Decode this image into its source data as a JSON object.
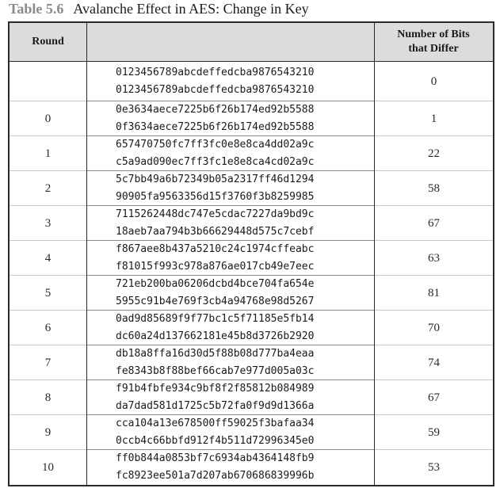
{
  "caption": {
    "number": "Table 5.6",
    "title": "Avalanche Effect in AES: Change in Key"
  },
  "header": {
    "round": "Round",
    "bits_line1": "Number of Bits",
    "bits_line2": "that Differ"
  },
  "rows": [
    {
      "round": "",
      "key1": "0123456789abcdeffedcba9876543210",
      "key2": "0123456789abcdeffedcba9876543210",
      "bits": "0"
    },
    {
      "round": "0",
      "key1": "0e3634aece7225b6f26b174ed92b5588",
      "key2": "0f3634aece7225b6f26b174ed92b5588",
      "bits": "1"
    },
    {
      "round": "1",
      "key1": "657470750fc7ff3fc0e8e8ca4dd02a9c",
      "key2": "c5a9ad090ec7ff3fc1e8e8ca4cd02a9c",
      "bits": "22"
    },
    {
      "round": "2",
      "key1": "5c7bb49a6b72349b05a2317ff46d1294",
      "key2": "90905fa9563356d15f3760f3b8259985",
      "bits": "58"
    },
    {
      "round": "3",
      "key1": "7115262448dc747e5cdac7227da9bd9c",
      "key2": "18aeb7aa794b3b66629448d575c7cebf",
      "bits": "67"
    },
    {
      "round": "4",
      "key1": "f867aee8b437a5210c24c1974cffeabc",
      "key2": "f81015f993c978a876ae017cb49e7eec",
      "bits": "63"
    },
    {
      "round": "5",
      "key1": "721eb200ba06206dcbd4bce704fa654e",
      "key2": "5955c91b4e769f3cb4a94768e98d5267",
      "bits": "81"
    },
    {
      "round": "6",
      "key1": "0ad9d85689f9f77bc1c5f71185e5fb14",
      "key2": "dc60a24d137662181e45b8d3726b2920",
      "bits": "70"
    },
    {
      "round": "7",
      "key1": "db18a8ffa16d30d5f88b08d777ba4eaa",
      "key2": "fe8343b8f88bef66cab7e977d005a03c",
      "bits": "74"
    },
    {
      "round": "8",
      "key1": "f91b4fbfe934c9bf8f2f85812b084989",
      "key2": "da7dad581d1725c5b72fa0f9d9d1366a",
      "bits": "67"
    },
    {
      "round": "9",
      "key1": "cca104a13e678500ff59025f3bafaa34",
      "key2": "0ccb4c66bbfd912f4b511d72996345e0",
      "bits": "59"
    },
    {
      "round": "10",
      "key1": "ff0b844a0853bf7c6934ab4364148fb9",
      "key2": "fc8923ee501a7d207ab670686839996b",
      "bits": "53"
    }
  ]
}
